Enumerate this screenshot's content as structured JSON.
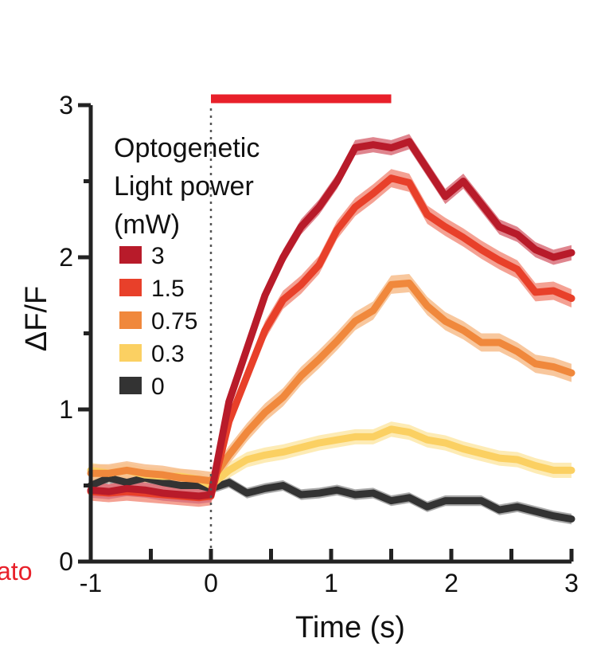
{
  "margin_label": {
    "text": "ato",
    "color": "#e8202a"
  },
  "chart_data": {
    "type": "line",
    "title": "",
    "xlabel": "Time (s)",
    "ylabel": "ΔF/F",
    "xlim": [
      -1,
      3
    ],
    "ylim": [
      0,
      3
    ],
    "xticks": [
      -1,
      0,
      1,
      2,
      3
    ],
    "xtick_labels": [
      "-1",
      "0",
      "1",
      "2",
      "3"
    ],
    "yticks": [
      0,
      1,
      2,
      3
    ],
    "ytick_labels": [
      "0",
      "1",
      "2",
      "3"
    ],
    "stim_bar": {
      "start": 0,
      "end": 1.5,
      "color": "#e8202a"
    },
    "onset_line_x": 0,
    "legend": {
      "title_lines": [
        "Optogenetic",
        "Light power",
        "(mW)"
      ],
      "position": "top-left"
    },
    "x": [
      -1,
      -0.85,
      -0.7,
      -0.55,
      -0.4,
      -0.25,
      -0.1,
      0,
      0.15,
      0.3,
      0.45,
      0.6,
      0.75,
      0.9,
      1.05,
      1.2,
      1.35,
      1.5,
      1.65,
      1.8,
      1.95,
      2.1,
      2.25,
      2.4,
      2.55,
      2.7,
      2.85,
      3
    ],
    "series": [
      {
        "name": "3",
        "color": "#b81b2a",
        "band_color": "#d9707a",
        "values": [
          0.47,
          0.46,
          0.48,
          0.47,
          0.45,
          0.44,
          0.43,
          0.44,
          1.05,
          1.4,
          1.75,
          2.0,
          2.2,
          2.33,
          2.5,
          2.72,
          2.74,
          2.72,
          2.76,
          2.58,
          2.4,
          2.5,
          2.35,
          2.2,
          2.15,
          2.05,
          2.0,
          2.03
        ],
        "error": 0.05
      },
      {
        "name": "1.5",
        "color": "#e8402a",
        "band_color": "#f29080",
        "values": [
          0.46,
          0.45,
          0.46,
          0.45,
          0.44,
          0.43,
          0.42,
          0.43,
          0.92,
          1.22,
          1.52,
          1.72,
          1.82,
          1.95,
          2.18,
          2.33,
          2.42,
          2.52,
          2.49,
          2.28,
          2.2,
          2.13,
          2.05,
          1.98,
          1.92,
          1.77,
          1.78,
          1.73
        ],
        "error": 0.06
      },
      {
        "name": "0.75",
        "color": "#f0883c",
        "band_color": "#f7bd8c",
        "values": [
          0.58,
          0.58,
          0.6,
          0.58,
          0.57,
          0.55,
          0.54,
          0.53,
          0.7,
          0.85,
          0.98,
          1.08,
          1.22,
          1.33,
          1.45,
          1.58,
          1.65,
          1.82,
          1.83,
          1.68,
          1.58,
          1.52,
          1.44,
          1.44,
          1.38,
          1.3,
          1.28,
          1.24
        ],
        "error": 0.06
      },
      {
        "name": "0.3",
        "color": "#fbd062",
        "band_color": "#fde7a8",
        "values": [
          0.6,
          0.58,
          0.6,
          0.57,
          0.56,
          0.56,
          0.54,
          0.5,
          0.6,
          0.67,
          0.7,
          0.72,
          0.75,
          0.78,
          0.8,
          0.82,
          0.82,
          0.87,
          0.85,
          0.8,
          0.78,
          0.74,
          0.71,
          0.68,
          0.67,
          0.63,
          0.6,
          0.6
        ],
        "error": 0.05
      },
      {
        "name": "0",
        "color": "#333333",
        "band_color": "#9a9a9a",
        "values": [
          0.5,
          0.55,
          0.52,
          0.55,
          0.52,
          0.5,
          0.5,
          0.48,
          0.52,
          0.45,
          0.48,
          0.5,
          0.44,
          0.45,
          0.47,
          0.44,
          0.45,
          0.4,
          0.42,
          0.36,
          0.4,
          0.4,
          0.4,
          0.34,
          0.36,
          0.33,
          0.3,
          0.28
        ],
        "error": 0.035
      }
    ]
  }
}
